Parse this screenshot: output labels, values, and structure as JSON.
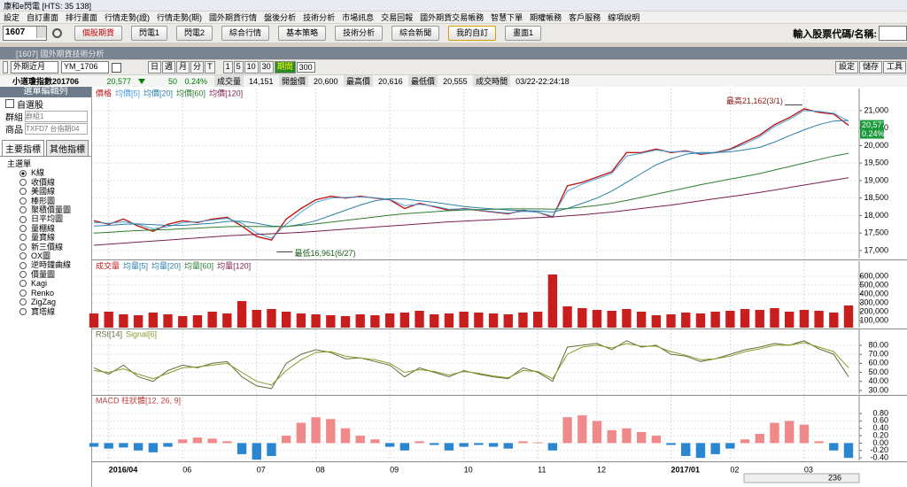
{
  "ui": {
    "title": "康和e閃電 [HTS: 35 138]",
    "menu": [
      "設定",
      "自訂畫面",
      "排行畫面",
      "行情走勢(證)",
      "行情走勢(期)",
      "國外期貨行情",
      "盤後分析",
      "技術分析",
      "市場訊息",
      "交易回報",
      "國外期貨交易帳務",
      "智慧下單",
      "期權帳務",
      "客戶服務",
      "線項說明"
    ],
    "code": "1607",
    "buttons": [
      "個股期貨",
      "閃電1",
      "閃電2",
      "綜合行情",
      "基本策略",
      "技術分析",
      "綜合新聞",
      "我的自訂",
      "畫面1"
    ],
    "search_label": "輸入股票代碼/名稱:",
    "window_title": "[1607] 國外期貨技術分析",
    "market": "外期近月",
    "symbol": "YM_1706",
    "periods": [
      "日",
      "週",
      "月",
      "分",
      "T"
    ],
    "minutes": [
      "1",
      "5",
      "10",
      "30"
    ],
    "period_label": "期間",
    "period_count": "300",
    "tools": [
      "設定",
      "儲存",
      "工具"
    ],
    "info": {
      "name": "小道瓊指數201706",
      "price": "20,577",
      "change": "50",
      "pct": "0.24%",
      "fields": [
        {
          "label": "成交量",
          "value": "14,151"
        },
        {
          "label": "開盤價",
          "value": "20,600"
        },
        {
          "label": "最高價",
          "value": "20,616"
        },
        {
          "label": "最低價",
          "value": "20,555"
        },
        {
          "label": "成交時間",
          "value": "03/22-22:24:18"
        }
      ]
    },
    "side": {
      "header": "選單編輯列",
      "checkbox": "自選股",
      "group_label": "群組",
      "group": "群組1",
      "product_label": "商品",
      "product": "TXFD7 台指期04",
      "tabs": [
        "主要指標",
        "其他指標"
      ],
      "tree_root": "主選單",
      "items": [
        "K線",
        "收價線",
        "美國線",
        "棒形圖",
        "聚積價量圖",
        "日平均圖",
        "量棚線",
        "量寶線",
        "新三價線",
        "OX圖",
        "逆時鐘曲線",
        "價量圖",
        "Kagi",
        "Renko",
        "ZigZag",
        "寶塔線"
      ]
    },
    "zoom": "236"
  },
  "chart_data": [
    {
      "type": "line",
      "ylim": [
        16770,
        21630
      ],
      "yticks": [
        {
          "value": 17000,
          "label": "17,000"
        },
        {
          "value": 17500,
          "label": "17,500"
        },
        {
          "value": 18000,
          "label": "18,000"
        },
        {
          "value": 18500,
          "label": "18,500"
        },
        {
          "value": 19000,
          "label": "19,000"
        },
        {
          "value": 19500,
          "label": "19,500"
        },
        {
          "value": 20000,
          "label": "20,000"
        },
        {
          "value": 20500,
          "label": "20,500"
        },
        {
          "value": 21000,
          "label": "21,000"
        }
      ],
      "grid": true,
      "series": [
        {
          "name": "價格",
          "color": "#c01818",
          "values": [
            17850,
            17750,
            17900,
            17700,
            17550,
            17750,
            17850,
            17800,
            17900,
            17950,
            17700,
            17400,
            17300,
            17900,
            18200,
            18450,
            18550,
            18500,
            18550,
            18500,
            18450,
            18200,
            18350,
            18250,
            18150,
            18200,
            18150,
            18100,
            18050,
            18150,
            18100,
            17950,
            18850,
            18950,
            19100,
            19250,
            19800,
            19800,
            19900,
            19800,
            19850,
            19750,
            19800,
            19900,
            20100,
            20300,
            20600,
            20800,
            21050,
            20950,
            20900,
            20577
          ]
        },
        {
          "name": "均價[5]",
          "color": "#4aa0d8",
          "values": [
            17800,
            17780,
            17820,
            17750,
            17620,
            17680,
            17800,
            17820,
            17870,
            17920,
            17780,
            17500,
            17350,
            17750,
            18100,
            18380,
            18500,
            18520,
            18530,
            18510,
            18460,
            18280,
            18320,
            18270,
            18180,
            18190,
            18160,
            18110,
            18070,
            18120,
            18100,
            17980,
            18700,
            18900,
            19050,
            19200,
            19700,
            19780,
            19870,
            19820,
            19830,
            19770,
            19790,
            19880,
            20050,
            20250,
            20550,
            20750,
            21000,
            20980,
            20920,
            20700
          ]
        },
        {
          "name": "均價[20]",
          "color": "#2b7fa6",
          "values": [
            17700,
            17720,
            17750,
            17760,
            17740,
            17720,
            17720,
            17750,
            17780,
            17830,
            17840,
            17780,
            17700,
            17680,
            17750,
            17850,
            18000,
            18150,
            18300,
            18420,
            18480,
            18470,
            18420,
            18380,
            18320,
            18260,
            18220,
            18190,
            18160,
            18140,
            18130,
            18100,
            18200,
            18350,
            18500,
            18700,
            18950,
            19200,
            19450,
            19620,
            19750,
            19800,
            19800,
            19820,
            19880,
            19950,
            20100,
            20280,
            20450,
            20600,
            20700,
            20720
          ]
        },
        {
          "name": "均價[60]",
          "color": "#2e7d32",
          "values": [
            17500,
            17520,
            17550,
            17570,
            17590,
            17600,
            17620,
            17640,
            17660,
            17680,
            17690,
            17690,
            17680,
            17690,
            17720,
            17760,
            17810,
            17860,
            17910,
            17960,
            18010,
            18050,
            18080,
            18110,
            18140,
            18160,
            18170,
            18180,
            18190,
            18190,
            18190,
            18180,
            18200,
            18240,
            18290,
            18350,
            18430,
            18520,
            18610,
            18700,
            18790,
            18880,
            18960,
            19040,
            19120,
            19200,
            19300,
            19400,
            19500,
            19600,
            19700,
            19780
          ]
        },
        {
          "name": "均價[120]",
          "color": "#7b1f4e",
          "values": [
            17150,
            17180,
            17210,
            17240,
            17270,
            17300,
            17330,
            17360,
            17390,
            17420,
            17440,
            17460,
            17480,
            17500,
            17520,
            17550,
            17580,
            17610,
            17640,
            17670,
            17700,
            17730,
            17760,
            17790,
            17820,
            17840,
            17860,
            17880,
            17900,
            17920,
            17940,
            17960,
            17990,
            18020,
            18060,
            18100,
            18150,
            18200,
            18250,
            18300,
            18360,
            18420,
            18480,
            18540,
            18600,
            18660,
            18730,
            18800,
            18870,
            18940,
            19010,
            19080
          ]
        }
      ],
      "annotations": [
        {
          "text": "最高21,162(3/1)",
          "x": 48,
          "y": 21162
        },
        {
          "text": "最低16,961(6/27)",
          "x": 12,
          "y": 16961
        }
      ],
      "last_value": {
        "value": 20577,
        "label": "20,577"
      },
      "tag_color": "#1a9a3a"
    },
    {
      "type": "bar",
      "ylim": [
        20000,
        770000
      ],
      "yticks": [
        {
          "value": 100000,
          "label": "100,000"
        },
        {
          "value": 200000,
          "label": "200,000"
        },
        {
          "value": 300000,
          "label": "300,000"
        },
        {
          "value": 400000,
          "label": "400,000"
        },
        {
          "value": 500000,
          "label": "500,000"
        },
        {
          "value": 600000,
          "label": "600,000"
        }
      ],
      "grid": true,
      "series": [
        {
          "name": "成交量",
          "color": "#c81e1e",
          "values": [
            180000,
            200000,
            170000,
            160000,
            190000,
            170000,
            150000,
            160000,
            200000,
            180000,
            320000,
            220000,
            230000,
            200000,
            180000,
            170000,
            160000,
            150000,
            170000,
            160000,
            180000,
            190000,
            210000,
            170000,
            180000,
            200000,
            190000,
            180000,
            170000,
            190000,
            200000,
            620000,
            260000,
            240000,
            220000,
            210000,
            230000,
            200000,
            160000,
            170000,
            190000,
            180000,
            200000,
            210000,
            230000,
            220000,
            240000,
            200000,
            220000,
            210000,
            190000,
            270000
          ]
        }
      ],
      "overlays": [
        {
          "name": "均量[5]",
          "color": "#2b7fa6"
        },
        {
          "name": "均量[20]",
          "color": "#2b7fa6"
        },
        {
          "name": "均量[60]",
          "color": "#2e7d32"
        },
        {
          "name": "均量[120]",
          "color": "#7b1f4e"
        }
      ]
    },
    {
      "type": "line",
      "ylim": [
        26,
        97.6
      ],
      "yticks": [
        {
          "value": 30,
          "label": "30.00"
        },
        {
          "value": 40,
          "label": "40.00"
        },
        {
          "value": 50,
          "label": "50.00"
        },
        {
          "value": 60,
          "label": "60.00"
        },
        {
          "value": 70,
          "label": "70.00"
        },
        {
          "value": 80,
          "label": "80.00"
        }
      ],
      "grid": true,
      "series": [
        {
          "name": "RSI[14]",
          "color": "#6b6b3a",
          "values": [
            55,
            48,
            58,
            45,
            40,
            52,
            58,
            55,
            60,
            62,
            45,
            35,
            32,
            60,
            70,
            75,
            72,
            65,
            66,
            62,
            58,
            45,
            55,
            50,
            45,
            52,
            48,
            45,
            43,
            55,
            50,
            40,
            78,
            80,
            82,
            75,
            85,
            78,
            80,
            70,
            68,
            62,
            65,
            70,
            75,
            78,
            82,
            80,
            85,
            76,
            70,
            45
          ]
        },
        {
          "name": "Signal[6]",
          "color": "#8a9a2a",
          "values": [
            52,
            50,
            54,
            48,
            43,
            49,
            55,
            56,
            58,
            60,
            50,
            40,
            36,
            52,
            64,
            72,
            73,
            68,
            66,
            64,
            60,
            50,
            53,
            51,
            47,
            51,
            49,
            46,
            44,
            52,
            51,
            43,
            70,
            78,
            80,
            77,
            82,
            79,
            79,
            73,
            69,
            64,
            65,
            68,
            73,
            76,
            80,
            80,
            83,
            78,
            73,
            55
          ]
        }
      ]
    },
    {
      "type": "bar",
      "title": "MACD 柱狀體[12, 26, 9]",
      "ylim": [
        -0.47,
        1.28
      ],
      "yticks": [
        {
          "value": -0.4,
          "label": "-0.40"
        },
        {
          "value": -0.2,
          "label": "-0.20"
        },
        {
          "value": 0,
          "label": "0.00"
        },
        {
          "value": 0.2,
          "label": "0.20"
        },
        {
          "value": 0.4,
          "label": "0.40"
        },
        {
          "value": 0.6,
          "label": "0.60"
        },
        {
          "value": 0.8,
          "label": "0.80"
        }
      ],
      "grid": true,
      "pos_color": "#f08a8a",
      "neg_color": "#2a86d0",
      "values": [
        -0.1,
        -0.15,
        -0.12,
        -0.2,
        -0.25,
        -0.1,
        0.1,
        0.15,
        0.12,
        0.05,
        -0.3,
        -0.45,
        -0.35,
        0.2,
        0.55,
        0.7,
        0.65,
        0.4,
        0.2,
        0.1,
        -0.1,
        -0.2,
        0.05,
        -0.05,
        -0.2,
        -0.1,
        -0.05,
        -0.1,
        -0.15,
        0.05,
        0.02,
        -0.2,
        0.7,
        0.75,
        0.6,
        0.35,
        0.4,
        0.3,
        0.2,
        -0.05,
        -0.35,
        -0.4,
        -0.3,
        -0.15,
        0.1,
        0.25,
        0.55,
        0.6,
        0.5,
        0.05,
        -0.2,
        -0.4
      ],
      "categories": [
        null,
        "2016/04",
        null,
        null,
        null,
        null,
        "06",
        null,
        null,
        null,
        null,
        "07",
        null,
        null,
        null,
        "08",
        null,
        null,
        null,
        null,
        "09",
        null,
        null,
        null,
        null,
        "10",
        null,
        null,
        null,
        null,
        "11",
        null,
        null,
        null,
        "12",
        null,
        null,
        null,
        null,
        "2017/01",
        null,
        null,
        null,
        "02",
        null,
        null,
        null,
        null,
        "03",
        null,
        null,
        null
      ]
    }
  ]
}
